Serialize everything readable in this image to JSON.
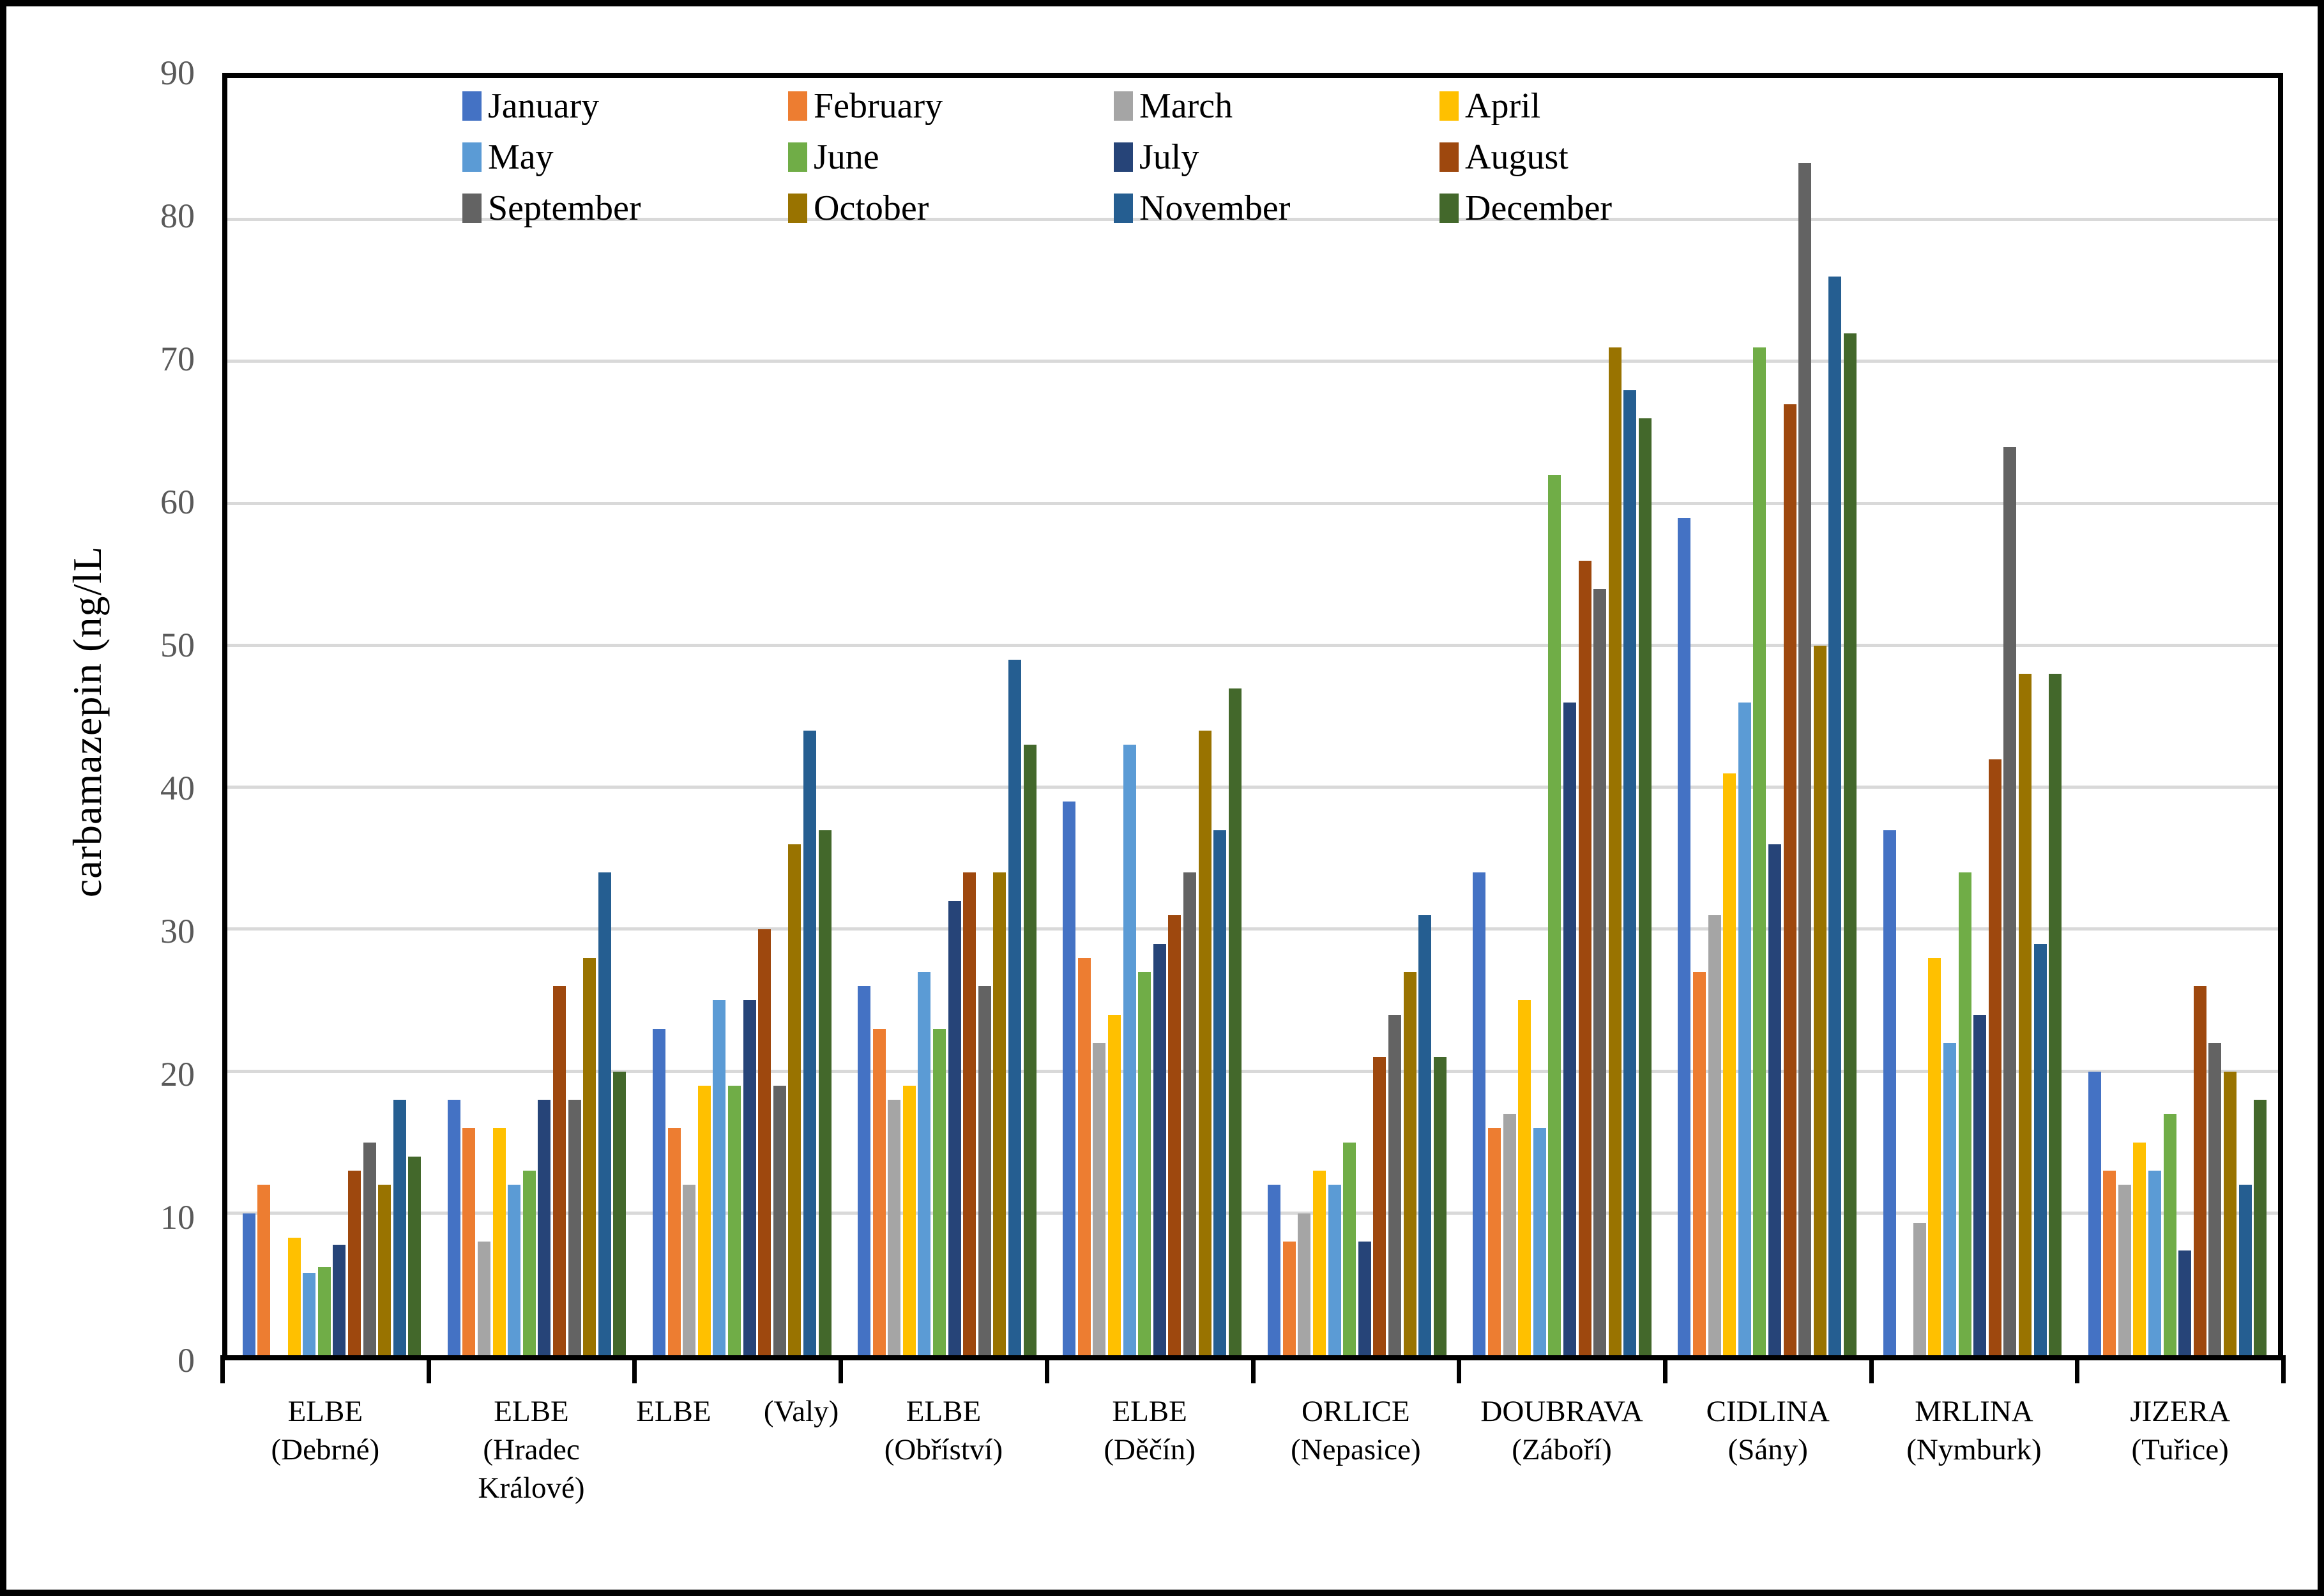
{
  "y_axis": {
    "title": "carbamazepin (ng/lL",
    "tick_labels": [
      "0",
      "10",
      "20",
      "30",
      "40",
      "50",
      "60",
      "70",
      "80",
      "90"
    ],
    "max": 90,
    "tick_color": "#595959"
  },
  "chart_data": {
    "type": "bar",
    "title": "",
    "xlabel": "",
    "ylabel": "carbamazepin (ng/lL",
    "ylim": [
      0,
      90
    ],
    "grid": true,
    "gridline_step": 10,
    "gridline_color": "#d9d9d9",
    "legend_position": "top-inside",
    "series_names": [
      "January",
      "February",
      "March",
      "April",
      "May",
      "June",
      "July",
      "August",
      "September",
      "October",
      "November",
      "December"
    ],
    "series_colors": [
      "#4472C4",
      "#ED7D31",
      "#A5A5A5",
      "#FFC000",
      "#5B9BD5",
      "#70AD47",
      "#264478",
      "#9E480E",
      "#636363",
      "#997300",
      "#255E91",
      "#43682B"
    ],
    "categories": [
      "ELBE (Debrné)",
      "ELBE (Hradec Králové)",
      "ELBE (Valy)",
      "ELBE (Obříství)",
      "ELBE (Děčín)",
      "ORLICE (Nepasice)",
      "DOUBRAVA (Záboří)",
      "CIDLINA (Sány)",
      "MRLINA (Nymburk)",
      "JIZERA (Tuřice)"
    ],
    "category_label_lines": [
      [
        "ELBE",
        "(Debrné)"
      ],
      [
        "ELBE",
        "(Hradec",
        "Králové)"
      ],
      [
        "ELBE       (Valy)"
      ],
      [
        "ELBE",
        "(Obříství)"
      ],
      [
        "ELBE",
        "(Děčín)"
      ],
      [
        "ORLICE",
        "(Nepasice)"
      ],
      [
        "DOUBRAVA",
        "(Záboří)"
      ],
      [
        "CIDLINA",
        "(Sány)"
      ],
      [
        "MRLINA",
        "(Nymburk)"
      ],
      [
        "JIZERA",
        "(Tuřice)"
      ]
    ],
    "values_by_category": [
      [
        10,
        12,
        null,
        8.3,
        5.8,
        6.2,
        7.8,
        13,
        15,
        12,
        18,
        14
      ],
      [
        18,
        16,
        8,
        16,
        12,
        13,
        18,
        26,
        18,
        28,
        34,
        20
      ],
      [
        23,
        16,
        12,
        19,
        25,
        19,
        25,
        30,
        19,
        36,
        44,
        37
      ],
      [
        26,
        23,
        18,
        19,
        27,
        23,
        32,
        34,
        26,
        34,
        49,
        43
      ],
      [
        39,
        28,
        22,
        24,
        43,
        27,
        29,
        31,
        34,
        44,
        37,
        47
      ],
      [
        12,
        8,
        10,
        13,
        12,
        15,
        8,
        21,
        24,
        27,
        31,
        21
      ],
      [
        34,
        16,
        17,
        25,
        16,
        62,
        46,
        56,
        54,
        71,
        68,
        66
      ],
      [
        59,
        27,
        31,
        41,
        46,
        71,
        36,
        67,
        84,
        50,
        76,
        72
      ],
      [
        37,
        null,
        9.3,
        28,
        22,
        34,
        24,
        42,
        64,
        48,
        29,
        48
      ],
      [
        20,
        13,
        12,
        15,
        13,
        17,
        7.4,
        26,
        22,
        20,
        12,
        18
      ]
    ]
  }
}
